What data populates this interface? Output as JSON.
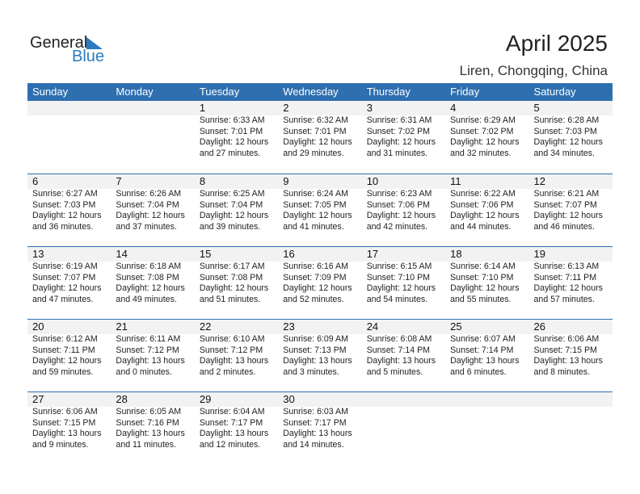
{
  "logo": {
    "general": "General",
    "blue": "Blue"
  },
  "title": "April 2025",
  "location": "Liren, Chongqing, China",
  "days": [
    "Sunday",
    "Monday",
    "Tuesday",
    "Wednesday",
    "Thursday",
    "Friday",
    "Saturday"
  ],
  "weeks": [
    [
      null,
      null,
      {
        "day": "1",
        "sunrise": "Sunrise: 6:33 AM",
        "sunset": "Sunset: 7:01 PM",
        "daylight1": "Daylight: 12 hours",
        "daylight2": "and 27 minutes."
      },
      {
        "day": "2",
        "sunrise": "Sunrise: 6:32 AM",
        "sunset": "Sunset: 7:01 PM",
        "daylight1": "Daylight: 12 hours",
        "daylight2": "and 29 minutes."
      },
      {
        "day": "3",
        "sunrise": "Sunrise: 6:31 AM",
        "sunset": "Sunset: 7:02 PM",
        "daylight1": "Daylight: 12 hours",
        "daylight2": "and 31 minutes."
      },
      {
        "day": "4",
        "sunrise": "Sunrise: 6:29 AM",
        "sunset": "Sunset: 7:02 PM",
        "daylight1": "Daylight: 12 hours",
        "daylight2": "and 32 minutes."
      },
      {
        "day": "5",
        "sunrise": "Sunrise: 6:28 AM",
        "sunset": "Sunset: 7:03 PM",
        "daylight1": "Daylight: 12 hours",
        "daylight2": "and 34 minutes."
      }
    ],
    [
      {
        "day": "6",
        "sunrise": "Sunrise: 6:27 AM",
        "sunset": "Sunset: 7:03 PM",
        "daylight1": "Daylight: 12 hours",
        "daylight2": "and 36 minutes."
      },
      {
        "day": "7",
        "sunrise": "Sunrise: 6:26 AM",
        "sunset": "Sunset: 7:04 PM",
        "daylight1": "Daylight: 12 hours",
        "daylight2": "and 37 minutes."
      },
      {
        "day": "8",
        "sunrise": "Sunrise: 6:25 AM",
        "sunset": "Sunset: 7:04 PM",
        "daylight1": "Daylight: 12 hours",
        "daylight2": "and 39 minutes."
      },
      {
        "day": "9",
        "sunrise": "Sunrise: 6:24 AM",
        "sunset": "Sunset: 7:05 PM",
        "daylight1": "Daylight: 12 hours",
        "daylight2": "and 41 minutes."
      },
      {
        "day": "10",
        "sunrise": "Sunrise: 6:23 AM",
        "sunset": "Sunset: 7:06 PM",
        "daylight1": "Daylight: 12 hours",
        "daylight2": "and 42 minutes."
      },
      {
        "day": "11",
        "sunrise": "Sunrise: 6:22 AM",
        "sunset": "Sunset: 7:06 PM",
        "daylight1": "Daylight: 12 hours",
        "daylight2": "and 44 minutes."
      },
      {
        "day": "12",
        "sunrise": "Sunrise: 6:21 AM",
        "sunset": "Sunset: 7:07 PM",
        "daylight1": "Daylight: 12 hours",
        "daylight2": "and 46 minutes."
      }
    ],
    [
      {
        "day": "13",
        "sunrise": "Sunrise: 6:19 AM",
        "sunset": "Sunset: 7:07 PM",
        "daylight1": "Daylight: 12 hours",
        "daylight2": "and 47 minutes."
      },
      {
        "day": "14",
        "sunrise": "Sunrise: 6:18 AM",
        "sunset": "Sunset: 7:08 PM",
        "daylight1": "Daylight: 12 hours",
        "daylight2": "and 49 minutes."
      },
      {
        "day": "15",
        "sunrise": "Sunrise: 6:17 AM",
        "sunset": "Sunset: 7:08 PM",
        "daylight1": "Daylight: 12 hours",
        "daylight2": "and 51 minutes."
      },
      {
        "day": "16",
        "sunrise": "Sunrise: 6:16 AM",
        "sunset": "Sunset: 7:09 PM",
        "daylight1": "Daylight: 12 hours",
        "daylight2": "and 52 minutes."
      },
      {
        "day": "17",
        "sunrise": "Sunrise: 6:15 AM",
        "sunset": "Sunset: 7:10 PM",
        "daylight1": "Daylight: 12 hours",
        "daylight2": "and 54 minutes."
      },
      {
        "day": "18",
        "sunrise": "Sunrise: 6:14 AM",
        "sunset": "Sunset: 7:10 PM",
        "daylight1": "Daylight: 12 hours",
        "daylight2": "and 55 minutes."
      },
      {
        "day": "19",
        "sunrise": "Sunrise: 6:13 AM",
        "sunset": "Sunset: 7:11 PM",
        "daylight1": "Daylight: 12 hours",
        "daylight2": "and 57 minutes."
      }
    ],
    [
      {
        "day": "20",
        "sunrise": "Sunrise: 6:12 AM",
        "sunset": "Sunset: 7:11 PM",
        "daylight1": "Daylight: 12 hours",
        "daylight2": "and 59 minutes."
      },
      {
        "day": "21",
        "sunrise": "Sunrise: 6:11 AM",
        "sunset": "Sunset: 7:12 PM",
        "daylight1": "Daylight: 13 hours",
        "daylight2": "and 0 minutes."
      },
      {
        "day": "22",
        "sunrise": "Sunrise: 6:10 AM",
        "sunset": "Sunset: 7:12 PM",
        "daylight1": "Daylight: 13 hours",
        "daylight2": "and 2 minutes."
      },
      {
        "day": "23",
        "sunrise": "Sunrise: 6:09 AM",
        "sunset": "Sunset: 7:13 PM",
        "daylight1": "Daylight: 13 hours",
        "daylight2": "and 3 minutes."
      },
      {
        "day": "24",
        "sunrise": "Sunrise: 6:08 AM",
        "sunset": "Sunset: 7:14 PM",
        "daylight1": "Daylight: 13 hours",
        "daylight2": "and 5 minutes."
      },
      {
        "day": "25",
        "sunrise": "Sunrise: 6:07 AM",
        "sunset": "Sunset: 7:14 PM",
        "daylight1": "Daylight: 13 hours",
        "daylight2": "and 6 minutes."
      },
      {
        "day": "26",
        "sunrise": "Sunrise: 6:06 AM",
        "sunset": "Sunset: 7:15 PM",
        "daylight1": "Daylight: 13 hours",
        "daylight2": "and 8 minutes."
      }
    ],
    [
      {
        "day": "27",
        "sunrise": "Sunrise: 6:06 AM",
        "sunset": "Sunset: 7:15 PM",
        "daylight1": "Daylight: 13 hours",
        "daylight2": "and 9 minutes."
      },
      {
        "day": "28",
        "sunrise": "Sunrise: 6:05 AM",
        "sunset": "Sunset: 7:16 PM",
        "daylight1": "Daylight: 13 hours",
        "daylight2": "and 11 minutes."
      },
      {
        "day": "29",
        "sunrise": "Sunrise: 6:04 AM",
        "sunset": "Sunset: 7:17 PM",
        "daylight1": "Daylight: 13 hours",
        "daylight2": "and 12 minutes."
      },
      {
        "day": "30",
        "sunrise": "Sunrise: 6:03 AM",
        "sunset": "Sunset: 7:17 PM",
        "daylight1": "Daylight: 13 hours",
        "daylight2": "and 14 minutes."
      },
      null,
      null,
      null
    ]
  ]
}
